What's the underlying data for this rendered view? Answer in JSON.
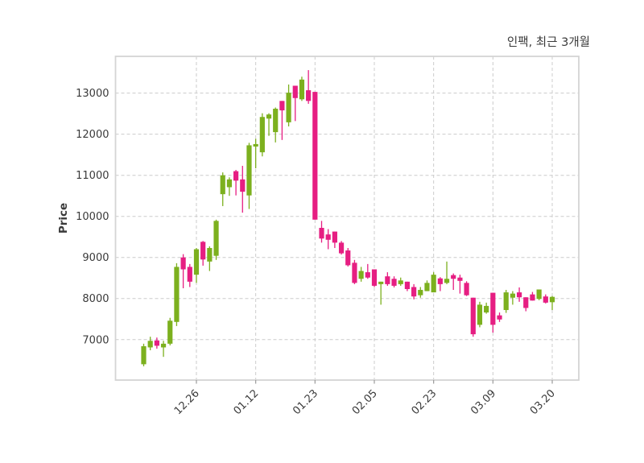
{
  "figure": {
    "title": "인팩, 최근 3개월",
    "ylabel": "Price"
  },
  "colors": {
    "up": "#7CB01E",
    "down": "#E61E82",
    "grid": "#cccccc",
    "border": "#d4d4d4",
    "text": "#3a3a3a",
    "tick_mark": "#9a9a9a",
    "background": "#ffffff"
  },
  "chart_data": {
    "type": "candlestick",
    "title": "인팩, 최근 3개월",
    "xlabel": "",
    "ylabel": "Price",
    "grid": "dashed, both axes",
    "legend": "none",
    "ylim": [
      6015,
      13895
    ],
    "y_ticks": [
      7000,
      8000,
      9000,
      10000,
      11000,
      12000,
      13000
    ],
    "x_tick_labels": [
      "12.26",
      "01.12",
      "01.23",
      "02.05",
      "02.23",
      "03.09",
      "03.20"
    ],
    "x_tick_indices": [
      8,
      17,
      26,
      35,
      44,
      53,
      62
    ],
    "ohlc_order": [
      "open",
      "high",
      "low",
      "close"
    ],
    "candles": [
      [
        6400,
        6900,
        6350,
        6840
      ],
      [
        6810,
        7070,
        6740,
        6970
      ],
      [
        6980,
        7050,
        6780,
        6850
      ],
      [
        6810,
        6970,
        6580,
        6900
      ],
      [
        6900,
        7530,
        6860,
        7460
      ],
      [
        7430,
        8860,
        7330,
        8770
      ],
      [
        9000,
        9080,
        8250,
        8710
      ],
      [
        8770,
        8840,
        8280,
        8410
      ],
      [
        8580,
        9230,
        8380,
        9200
      ],
      [
        9380,
        9400,
        8800,
        8950
      ],
      [
        8900,
        9270,
        8670,
        9230
      ],
      [
        9040,
        9920,
        8940,
        9890
      ],
      [
        10540,
        11070,
        10250,
        11000
      ],
      [
        10710,
        10950,
        10500,
        10900
      ],
      [
        11100,
        11130,
        10510,
        10870
      ],
      [
        10900,
        11230,
        10090,
        10600
      ],
      [
        10510,
        11790,
        10180,
        11730
      ],
      [
        11700,
        11890,
        11170,
        11760
      ],
      [
        11560,
        12510,
        11460,
        12420
      ],
      [
        12380,
        12510,
        11960,
        12480
      ],
      [
        12050,
        12650,
        11800,
        12620
      ],
      [
        12810,
        12810,
        11860,
        12580
      ],
      [
        12290,
        13210,
        12190,
        13010
      ],
      [
        13180,
        13180,
        12320,
        12880
      ],
      [
        12850,
        13400,
        12810,
        13330
      ],
      [
        13070,
        13560,
        12740,
        12810
      ],
      [
        13030,
        13030,
        9920,
        9920
      ],
      [
        9720,
        9890,
        9360,
        9460
      ],
      [
        9560,
        9690,
        9200,
        9430
      ],
      [
        9630,
        9630,
        9230,
        9360
      ],
      [
        9360,
        9400,
        9070,
        9100
      ],
      [
        9170,
        9230,
        8780,
        8810
      ],
      [
        8870,
        8940,
        8350,
        8380
      ],
      [
        8480,
        8770,
        8410,
        8670
      ],
      [
        8640,
        8840,
        8480,
        8510
      ],
      [
        8710,
        8710,
        8280,
        8310
      ],
      [
        8350,
        8410,
        7850,
        8410
      ],
      [
        8540,
        8640,
        8310,
        8350
      ],
      [
        8480,
        8540,
        8270,
        8310
      ],
      [
        8350,
        8510,
        8310,
        8440
      ],
      [
        8410,
        8410,
        8180,
        8230
      ],
      [
        8280,
        8350,
        7980,
        8050
      ],
      [
        8080,
        8280,
        8020,
        8210
      ],
      [
        8180,
        8440,
        8180,
        8380
      ],
      [
        8150,
        8640,
        8150,
        8580
      ],
      [
        8490,
        8520,
        8180,
        8350
      ],
      [
        8380,
        8900,
        8350,
        8480
      ],
      [
        8570,
        8610,
        8210,
        8480
      ],
      [
        8510,
        8580,
        8120,
        8430
      ],
      [
        8380,
        8420,
        8060,
        8080
      ],
      [
        8020,
        8020,
        7070,
        7130
      ],
      [
        7360,
        7920,
        7300,
        7850
      ],
      [
        7660,
        7900,
        7630,
        7820
      ],
      [
        8140,
        8140,
        7170,
        7360
      ],
      [
        7590,
        7660,
        7430,
        7490
      ],
      [
        7720,
        8210,
        7650,
        8150
      ],
      [
        8020,
        8180,
        7850,
        8120
      ],
      [
        8150,
        8270,
        7920,
        8030
      ],
      [
        8030,
        8030,
        7690,
        7770
      ],
      [
        8100,
        8160,
        7950,
        7950
      ],
      [
        7990,
        8220,
        7960,
        8220
      ],
      [
        8050,
        8100,
        7880,
        7900
      ],
      [
        7910,
        8060,
        7720,
        8040
      ]
    ]
  }
}
